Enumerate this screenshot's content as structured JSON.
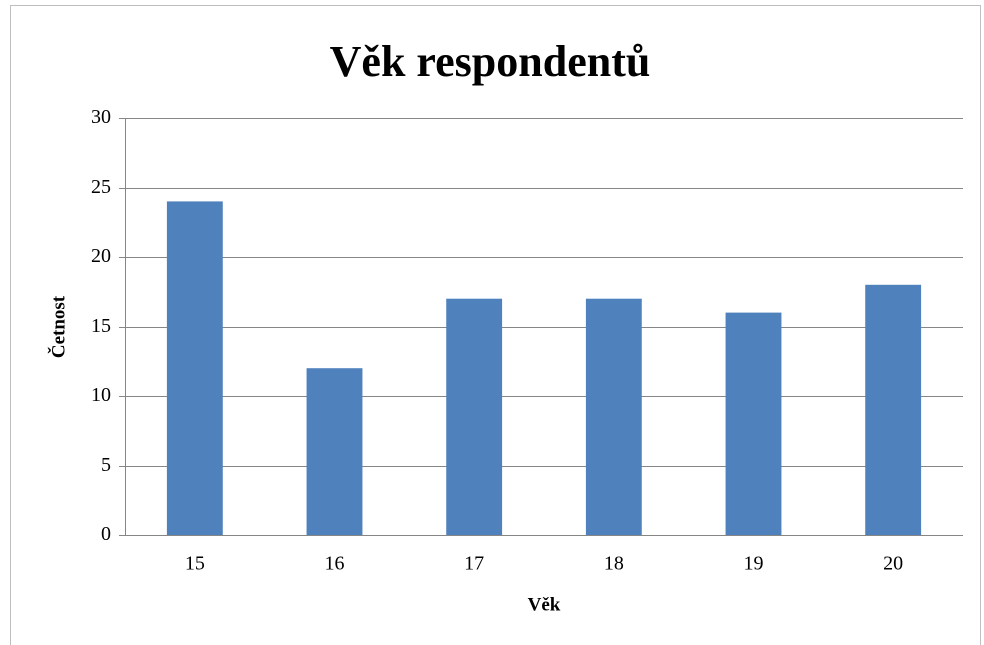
{
  "chart_data": {
    "type": "bar",
    "title": "Věk respondentů",
    "categories": [
      "15",
      "16",
      "17",
      "18",
      "19",
      "20"
    ],
    "values": [
      24,
      12,
      17,
      17,
      16,
      18
    ],
    "color": "#4f81bd",
    "xlabel": "Věk",
    "ylabel": "Četnost",
    "ylim": [
      0,
      30
    ],
    "yticks": [
      0,
      5,
      10,
      15,
      20,
      25,
      30
    ],
    "grid": true
  }
}
